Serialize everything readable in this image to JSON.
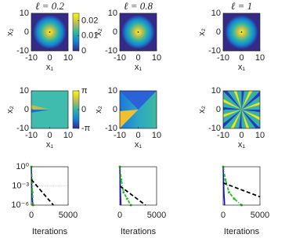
{
  "chart_data": [
    {
      "type": "heatmap",
      "title": "ℓ = 0.2",
      "xlabel": "x₁",
      "ylabel": "x₂",
      "xlim": [
        -10,
        10
      ],
      "ylim": [
        -10,
        10
      ],
      "xticks": [
        -10,
        0,
        10
      ],
      "yticks": [
        -10,
        0,
        10
      ],
      "colorbar": {
        "lim": [
          0,
          0.025
        ],
        "ticks": [
          0,
          0.01,
          0.02
        ]
      }
    },
    {
      "type": "heatmap",
      "title": "ℓ = 0.8",
      "xlabel": "x₁",
      "ylabel": "x₂",
      "xlim": [
        -10,
        10
      ],
      "ylim": [
        -10,
        10
      ],
      "xticks": [
        -10,
        0,
        10
      ],
      "yticks": [
        -10,
        0,
        10
      ]
    },
    {
      "type": "heatmap",
      "title": "ℓ = 1",
      "xlabel": "x₁",
      "ylabel": "x₂",
      "xlim": [
        -10,
        10
      ],
      "ylim": [
        -10,
        10
      ],
      "xticks": [
        -10,
        0,
        10
      ],
      "yticks": [
        -10,
        0,
        10
      ]
    },
    {
      "type": "heatmap",
      "xlabel": "x₁",
      "ylabel": "x₂",
      "xlim": [
        -10,
        10
      ],
      "ylim": [
        -10,
        10
      ],
      "xticks": [
        -10,
        0,
        10
      ],
      "yticks": [
        -10,
        0,
        10
      ],
      "colorbar": {
        "lim": [
          -3.1416,
          3.1416
        ],
        "ticks": [
          {
            "value": 3.1416,
            "label": "π"
          },
          0,
          {
            "value": -3.1416,
            "label": "-π"
          }
        ]
      }
    },
    {
      "type": "heatmap",
      "xlabel": "x₁",
      "ylabel": "x₂",
      "xlim": [
        -10,
        10
      ],
      "ylim": [
        -10,
        10
      ],
      "xticks": [
        -10,
        0,
        10
      ],
      "yticks": [
        -10,
        0,
        10
      ]
    },
    {
      "type": "heatmap",
      "xlabel": "x₁",
      "ylabel": "x₂",
      "xlim": [
        -10,
        10
      ],
      "ylim": [
        -10,
        10
      ],
      "xticks": [
        -10,
        0,
        10
      ],
      "yticks": [
        -10,
        0,
        10
      ]
    },
    {
      "type": "line",
      "xlabel": "Iterations",
      "log": true,
      "grid": true,
      "xlim": [
        0,
        5000
      ],
      "ylim": [
        1e-06,
        1
      ],
      "xticks": [
        0,
        5000
      ],
      "yticks": [
        {
          "value": 1,
          "label": "10⁰"
        },
        {
          "value": 0.001,
          "label": "10⁻³"
        },
        {
          "value": 1e-06,
          "label": "10⁻⁶"
        }
      ],
      "series": [
        {
          "color": "#0000ff",
          "linestyle": "solid",
          "x": [
            0,
            50,
            120,
            200
          ],
          "values": [
            1,
            0.001,
            1e-05,
            1e-06
          ]
        },
        {
          "color": "#22c022",
          "linestyle": "dashdot",
          "marker": "o",
          "x": [
            0,
            80,
            150,
            250
          ],
          "values": [
            1,
            0.01,
            0.0001,
            1e-06
          ]
        },
        {
          "color": "#000000",
          "linestyle": "dashed",
          "x": [
            0,
            3000
          ],
          "values": [
            0.01,
            1e-06
          ]
        }
      ]
    },
    {
      "type": "line",
      "xlabel": "Iterations",
      "log": true,
      "grid": false,
      "xlim": [
        0,
        5000
      ],
      "ylim": [
        1e-06,
        1
      ],
      "xticks": [
        0,
        5000
      ],
      "series": [
        {
          "color": "#0000ff",
          "linestyle": "solid",
          "x": [
            0,
            80,
            150
          ],
          "values": [
            1,
            0.0001,
            1e-06
          ]
        },
        {
          "color": "#22c022",
          "linestyle": "dashdot",
          "marker": "o",
          "x": [
            0,
            200,
            500,
            1000,
            1500
          ],
          "values": [
            1,
            0.01,
            0.0001,
            1e-05,
            1e-06
          ]
        },
        {
          "color": "#000000",
          "linestyle": "dashed",
          "x": [
            0,
            3500
          ],
          "values": [
            0.001,
            1e-06
          ]
        }
      ]
    },
    {
      "type": "line",
      "xlabel": "Iterations",
      "log": true,
      "grid": false,
      "xlim": [
        0,
        5000
      ],
      "ylim": [
        1e-06,
        1
      ],
      "xticks": [
        0,
        5000
      ],
      "series": [
        {
          "color": "#0000ff",
          "linestyle": "solid",
          "x": [
            0,
            100,
            200
          ],
          "values": [
            1,
            0.0001,
            1e-06
          ]
        },
        {
          "color": "#22c022",
          "linestyle": "dashdot",
          "marker": "o",
          "x": [
            0,
            300,
            800,
            1500,
            2500
          ],
          "values": [
            1,
            0.01,
            0.0001,
            1e-05,
            1e-06
          ]
        },
        {
          "color": "#000000",
          "linestyle": "dashed",
          "x": [
            0,
            5000
          ],
          "values": [
            0.003,
            2e-05
          ]
        }
      ]
    }
  ]
}
